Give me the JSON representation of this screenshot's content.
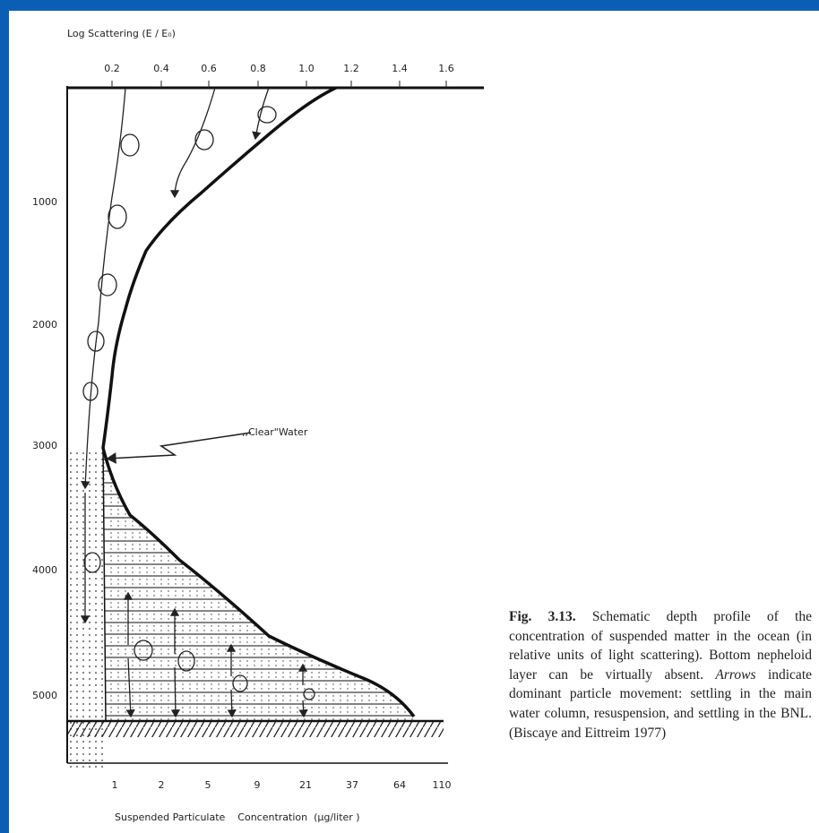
{
  "figure": {
    "top_axis": {
      "title": "Log  Scattering (E / E₀)",
      "ticks": [
        "0.2",
        "0.4",
        "0.6",
        "0.8",
        "1.0",
        "1.2",
        "1.4",
        "1.6"
      ]
    },
    "left_axis": {
      "ticks": [
        "1000",
        "2000",
        "3000",
        "4000",
        "5000"
      ]
    },
    "bottom_axis": {
      "title": "Suspended Particulate    Concentration  (μg/liter )",
      "ticks": [
        "1",
        "2",
        "5",
        "9",
        "21",
        "37",
        "64",
        "110"
      ]
    },
    "annotation": ",,Clear\"Water"
  },
  "caption": {
    "label": "Fig. 3.13.",
    "text_before": " Schematic depth profile of the concentration of suspended matter in the ocean (in relative units of light scattering). Bottom nepheloid layer can be virtually absent. ",
    "emphasis": "Arrows",
    "text_after": " indicate dominant particle movement: settling in the main water column, resuspension, and settling in the BNL. (Biscaye and Eittreim 1977)"
  }
}
